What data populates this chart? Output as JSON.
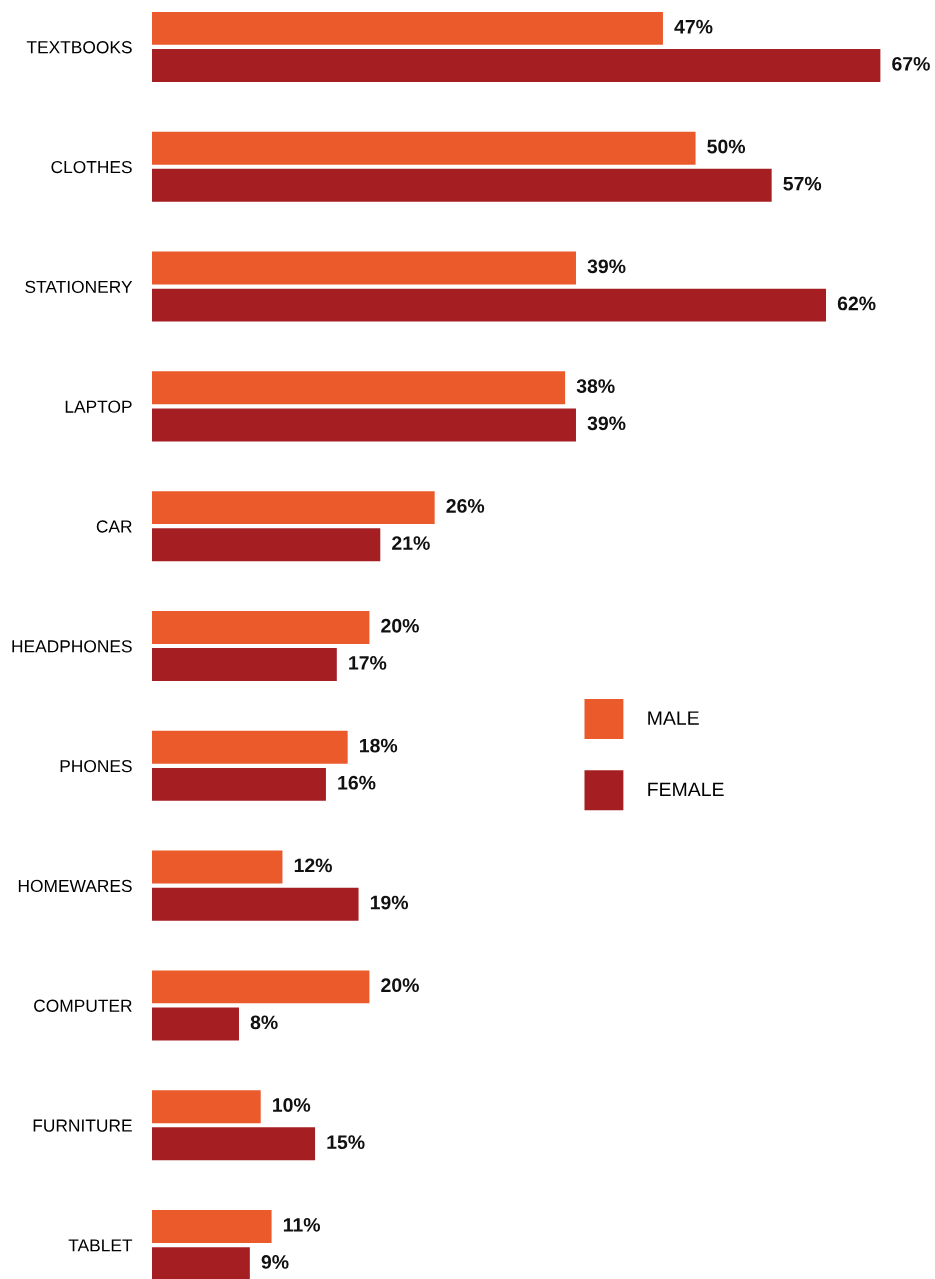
{
  "chart_data": {
    "type": "bar",
    "orientation": "horizontal",
    "categories": [
      "TEXTBOOKS",
      "CLOTHES",
      "STATIONERY",
      "LAPTOP",
      "CAR",
      "HEADPHONES",
      "PHONES",
      "HOMEWARES",
      "COMPUTER",
      "FURNITURE",
      "TABLET"
    ],
    "series": [
      {
        "name": "MALE",
        "color": "#ea5a2b",
        "values": [
          47,
          50,
          39,
          38,
          26,
          20,
          18,
          12,
          20,
          10,
          11
        ],
        "value_labels": [
          "47%",
          "50%",
          "39%",
          "38%",
          "26%",
          "20%",
          "18%",
          "12%",
          "20%",
          "10%",
          "11%"
        ]
      },
      {
        "name": "FEMALE",
        "color": "#a51e22",
        "values": [
          67,
          57,
          62,
          39,
          21,
          17,
          16,
          19,
          8,
          15,
          9
        ],
        "value_labels": [
          "67%",
          "57%",
          "62%",
          "39%",
          "21%",
          "17%",
          "16%",
          "19%",
          "8%",
          "15%",
          "9%"
        ]
      }
    ],
    "legend": "right",
    "grid": false
  }
}
